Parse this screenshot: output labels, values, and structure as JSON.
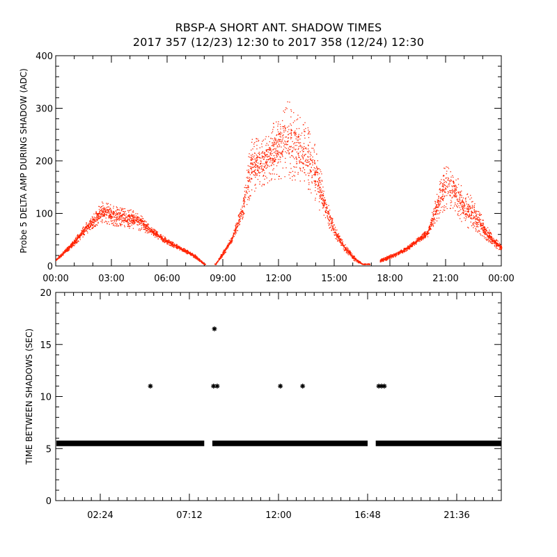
{
  "title": "RBSP-A SHORT ANT. SHADOW TIMES",
  "subtitle": "2017 357 (12/23) 12:30 to 2017 358 (12/24) 12:30",
  "colors": {
    "points_top": "#ff2200",
    "points_bottom": "#000000",
    "axes": "#000000",
    "background": "#ffffff"
  },
  "chart_data": [
    {
      "type": "scatter",
      "ylabel": "Probe 5 DELTA AMP DURING SHADOW (ADC)",
      "xlabel": "",
      "xlim": [
        "00:00",
        "24:00"
      ],
      "ylim": [
        0,
        400
      ],
      "x_ticks": [
        "00:00",
        "03:00",
        "06:00",
        "09:00",
        "12:00",
        "15:00",
        "18:00",
        "21:00",
        "00:00"
      ],
      "y_ticks": [
        "0",
        "100",
        "200",
        "300",
        "400"
      ],
      "series": [
        {
          "color": "#ff2200",
          "envelope": {
            "x_hours": [
              0.0,
              0.5,
              1.0,
              1.5,
              2.0,
              2.5,
              3.0,
              3.5,
              4.0,
              4.5,
              5.0,
              5.5,
              6.0,
              6.5,
              7.0,
              7.5,
              8.0,
              8.6,
              9.0,
              9.5,
              10.0,
              10.5,
              11.0,
              11.5,
              12.0,
              12.5,
              13.0,
              13.5,
              14.0,
              14.5,
              15.0,
              15.5,
              16.0,
              16.5,
              17.0,
              17.5,
              18.0,
              18.5,
              19.0,
              19.5,
              20.0,
              20.5,
              21.0,
              21.5,
              22.0,
              22.5,
              23.0,
              23.5,
              24.0
            ],
            "low": [
              10,
              25,
              40,
              58,
              72,
              82,
              78,
              75,
              72,
              68,
              62,
              52,
              42,
              33,
              25,
              15,
              3,
              3,
              20,
              45,
              85,
              135,
              150,
              160,
              165,
              165,
              160,
              150,
              120,
              85,
              55,
              30,
              12,
              3,
              3,
              8,
              14,
              22,
              32,
              45,
              55,
              85,
              110,
              105,
              75,
              70,
              55,
              40,
              28
            ],
            "high": [
              15,
              32,
              52,
              78,
              98,
              125,
              118,
              112,
              108,
              105,
              80,
              65,
              52,
              42,
              32,
              22,
              5,
              5,
              30,
              60,
              120,
              245,
              250,
              255,
              300,
              330,
              290,
              275,
              230,
              140,
              80,
              45,
              22,
              5,
              5,
              14,
              22,
              30,
              40,
              55,
              70,
              140,
              205,
              180,
              140,
              135,
              90,
              60,
              40
            ]
          }
        }
      ]
    },
    {
      "type": "scatter",
      "ylabel": "TIME BETWEEN SHADOWS (SEC)",
      "xlabel": "",
      "xlim": [
        0,
        24
      ],
      "ylim": [
        0,
        20
      ],
      "x_ticks": [
        "02:24",
        "07:12",
        "12:00",
        "16:48",
        "21:36"
      ],
      "y_ticks": [
        "0",
        "5",
        "10",
        "15",
        "20"
      ],
      "series": [
        {
          "color": "#000000",
          "marker": "asterisk",
          "baseline": {
            "value": 5.5,
            "segments_hours": [
              [
                0.0,
                8.0
              ],
              [
                8.4,
                16.8
              ],
              [
                17.2,
                24.0
              ]
            ]
          },
          "points": [
            {
              "x": 5.1,
              "y": 11.0
            },
            {
              "x": 8.55,
              "y": 16.5
            },
            {
              "x": 8.5,
              "y": 11.0
            },
            {
              "x": 8.7,
              "y": 11.0
            },
            {
              "x": 12.1,
              "y": 11.0
            },
            {
              "x": 13.3,
              "y": 11.0
            },
            {
              "x": 17.4,
              "y": 11.0
            },
            {
              "x": 17.55,
              "y": 11.0
            },
            {
              "x": 17.7,
              "y": 11.0
            }
          ]
        }
      ]
    }
  ]
}
